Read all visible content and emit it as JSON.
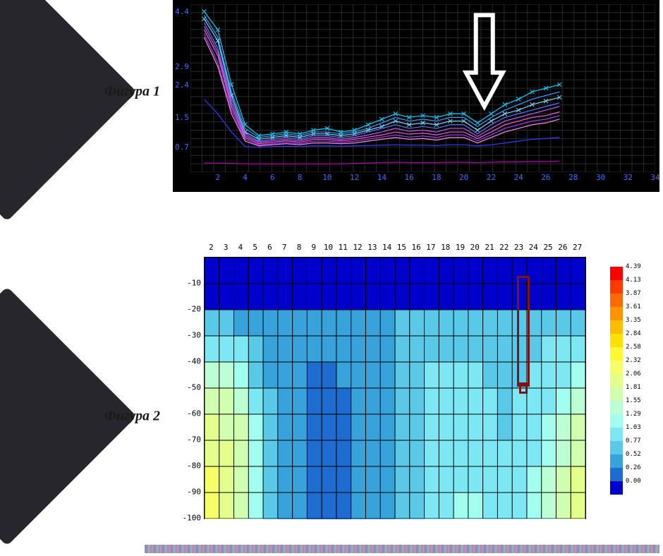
{
  "figure1": {
    "label": "Фигура 1",
    "type": "line",
    "background_color": "#000000",
    "grid_color": "#2a2a2a",
    "tick_color": "#3a6bff",
    "tick_fontsize": 11,
    "xlim": [
      0,
      34
    ],
    "ylim": [
      0,
      4.6
    ],
    "x_ticks": [
      2,
      4,
      6,
      8,
      10,
      12,
      14,
      16,
      18,
      20,
      22,
      24,
      26,
      28,
      30,
      32,
      34
    ],
    "y_ticks": [
      0.7,
      1.5,
      2.4,
      2.9,
      4.4
    ],
    "series": [
      {
        "color": "#00d0ff",
        "values": [
          4.4,
          3.9,
          2.4,
          1.3,
          1.0,
          1.05,
          1.1,
          1.05,
          1.15,
          1.2,
          1.1,
          1.15,
          1.3,
          1.45,
          1.6,
          1.5,
          1.55,
          1.5,
          1.6,
          1.6,
          1.35,
          1.6,
          1.85,
          2.0,
          2.2,
          2.3,
          2.4
        ]
      },
      {
        "color": "#3aa0ff",
        "values": [
          4.3,
          3.7,
          2.2,
          1.2,
          0.95,
          1.0,
          1.05,
          1.0,
          1.1,
          1.1,
          1.05,
          1.1,
          1.2,
          1.35,
          1.5,
          1.4,
          1.45,
          1.4,
          1.5,
          1.5,
          1.25,
          1.5,
          1.7,
          1.85,
          2.0,
          2.1,
          2.2
        ]
      },
      {
        "color": "#7ad4ff",
        "values": [
          4.2,
          3.6,
          2.1,
          1.1,
          0.9,
          0.95,
          1.0,
          0.95,
          1.05,
          1.05,
          1.0,
          1.05,
          1.15,
          1.25,
          1.4,
          1.3,
          1.35,
          1.3,
          1.4,
          1.4,
          1.15,
          1.4,
          1.6,
          1.7,
          1.85,
          1.95,
          2.05
        ]
      },
      {
        "color": "#5a7aff",
        "values": [
          4.1,
          3.4,
          2.0,
          1.05,
          0.85,
          0.9,
          0.95,
          0.9,
          1.0,
          1.0,
          0.95,
          1.0,
          1.1,
          1.2,
          1.3,
          1.2,
          1.25,
          1.2,
          1.3,
          1.3,
          1.05,
          1.3,
          1.5,
          1.6,
          1.7,
          1.8,
          1.9
        ]
      },
      {
        "color": "#c05aff",
        "values": [
          4.0,
          3.3,
          1.9,
          1.0,
          0.82,
          0.86,
          0.9,
          0.86,
          0.95,
          0.95,
          0.9,
          0.95,
          1.02,
          1.1,
          1.2,
          1.12,
          1.15,
          1.1,
          1.2,
          1.2,
          0.98,
          1.2,
          1.4,
          1.5,
          1.6,
          1.7,
          1.8
        ]
      },
      {
        "color": "#ff5ad4",
        "values": [
          3.9,
          3.2,
          1.8,
          0.95,
          0.78,
          0.82,
          0.86,
          0.82,
          0.9,
          0.9,
          0.86,
          0.9,
          0.96,
          1.02,
          1.1,
          1.04,
          1.07,
          1.02,
          1.1,
          1.1,
          0.92,
          1.1,
          1.3,
          1.4,
          1.5,
          1.55,
          1.65
        ]
      },
      {
        "color": "#9a40ff",
        "values": [
          3.8,
          3.0,
          1.7,
          0.9,
          0.75,
          0.78,
          0.82,
          0.78,
          0.85,
          0.85,
          0.82,
          0.85,
          0.9,
          0.96,
          1.02,
          0.96,
          0.99,
          0.95,
          1.02,
          1.02,
          0.86,
          1.02,
          1.2,
          1.3,
          1.4,
          1.45,
          1.55
        ]
      },
      {
        "color": "#ff8ae6",
        "values": [
          3.7,
          2.9,
          1.6,
          0.85,
          0.72,
          0.75,
          0.78,
          0.75,
          0.8,
          0.8,
          0.78,
          0.8,
          0.85,
          0.9,
          0.95,
          0.9,
          0.92,
          0.88,
          0.95,
          0.95,
          0.8,
          0.95,
          1.1,
          1.2,
          1.3,
          1.35,
          1.45
        ]
      },
      {
        "color": "#3737ff",
        "values": [
          2.0,
          1.6,
          1.1,
          0.7,
          0.68,
          0.7,
          0.71,
          0.7,
          0.72,
          0.72,
          0.71,
          0.72,
          0.73,
          0.74,
          0.75,
          0.74,
          0.74,
          0.73,
          0.75,
          0.75,
          0.72,
          0.75,
          0.8,
          0.85,
          0.9,
          0.92,
          0.95
        ]
      },
      {
        "color": "#b000b0",
        "values": [
          0.25,
          0.25,
          0.24,
          0.23,
          0.23,
          0.23,
          0.23,
          0.23,
          0.23,
          0.23,
          0.23,
          0.24,
          0.25,
          0.26,
          0.27,
          0.26,
          0.26,
          0.26,
          0.27,
          0.27,
          0.26,
          0.27,
          0.28,
          0.28,
          0.29,
          0.29,
          0.3
        ]
      }
    ],
    "arrow": {
      "stroke": "#ffffff",
      "stroke_width": 6,
      "x_value": 21.5,
      "y_from": 4.4,
      "y_to": 1.8,
      "head_width": 52,
      "head_height": 48
    }
  },
  "figure2": {
    "label": "Фигура 2",
    "type": "heatmap",
    "x_ticks": [
      2,
      3,
      4,
      5,
      6,
      7,
      8,
      9,
      10,
      11,
      12,
      13,
      14,
      15,
      16,
      17,
      18,
      19,
      20,
      21,
      22,
      23,
      24,
      25,
      26,
      27
    ],
    "y_ticks": [
      -10,
      -20,
      -30,
      -40,
      -50,
      -60,
      -70,
      -80,
      -90,
      -100
    ],
    "xlim": [
      1.5,
      27.5
    ],
    "ylim": [
      -100,
      0
    ],
    "grid_color": "#000000",
    "tick_fontsize": 11,
    "colormap": [
      {
        "v": 4.39,
        "c": "#ff0000"
      },
      {
        "v": 4.13,
        "c": "#ff3a00"
      },
      {
        "v": 3.87,
        "c": "#ff6a00"
      },
      {
        "v": 3.61,
        "c": "#ff9400"
      },
      {
        "v": 3.35,
        "c": "#ffbd00"
      },
      {
        "v": 2.84,
        "c": "#ffe100"
      },
      {
        "v": 2.58,
        "c": "#fff933"
      },
      {
        "v": 2.32,
        "c": "#f6ff66"
      },
      {
        "v": 2.06,
        "c": "#e3ff8c"
      },
      {
        "v": 1.81,
        "c": "#d0ffb0"
      },
      {
        "v": 1.55,
        "c": "#bdffd4"
      },
      {
        "v": 1.29,
        "c": "#a2ffef"
      },
      {
        "v": 1.03,
        "c": "#7de8f4"
      },
      {
        "v": 0.77,
        "c": "#5ac9e8"
      },
      {
        "v": 0.52,
        "c": "#38a2db"
      },
      {
        "v": 0.26,
        "c": "#1e6ccf"
      },
      {
        "v": 0.0,
        "c": "#0000cc"
      }
    ],
    "grid_values": [
      [
        0.0,
        0.0,
        0.0,
        0.0,
        0.0,
        0.0,
        0.0,
        0.0,
        0.0,
        0.0,
        0.0,
        0.0,
        0.0,
        0.0,
        0.0,
        0.0,
        0.0,
        0.0,
        0.0,
        0.0,
        0.0,
        0.0,
        0.0,
        0.0,
        0.0,
        0.0
      ],
      [
        0.1,
        0.1,
        0.1,
        0.1,
        0.1,
        0.1,
        0.1,
        0.1,
        0.1,
        0.1,
        0.1,
        0.1,
        0.1,
        0.1,
        0.1,
        0.1,
        0.1,
        0.1,
        0.1,
        0.1,
        0.1,
        0.1,
        0.1,
        0.1,
        0.1,
        0.1
      ],
      [
        0.77,
        0.77,
        0.7,
        0.6,
        0.6,
        0.6,
        0.6,
        0.6,
        0.6,
        0.65,
        0.7,
        0.7,
        0.72,
        0.77,
        0.77,
        0.8,
        0.8,
        0.8,
        0.8,
        0.77,
        0.77,
        0.77,
        0.8,
        0.8,
        0.8,
        0.82
      ],
      [
        1.2,
        1.2,
        1.1,
        0.8,
        0.65,
        0.6,
        0.55,
        0.55,
        0.55,
        0.58,
        0.65,
        0.7,
        0.72,
        0.9,
        0.95,
        1.0,
        1.0,
        1.0,
        1.0,
        0.95,
        0.9,
        0.95,
        1.0,
        1.03,
        1.03,
        1.1
      ],
      [
        1.6,
        1.55,
        1.4,
        1.0,
        0.7,
        0.55,
        0.52,
        0.5,
        0.5,
        0.52,
        0.55,
        0.6,
        0.7,
        0.9,
        1.0,
        1.03,
        1.05,
        1.05,
        1.05,
        1.0,
        0.95,
        1.0,
        1.05,
        1.1,
        1.15,
        1.29
      ],
      [
        1.81,
        1.81,
        1.6,
        1.2,
        0.77,
        0.55,
        0.52,
        0.5,
        0.5,
        0.5,
        0.52,
        0.55,
        0.65,
        0.85,
        1.0,
        1.05,
        1.1,
        1.1,
        1.1,
        1.03,
        0.98,
        1.03,
        1.1,
        1.15,
        1.29,
        1.55
      ],
      [
        2.06,
        2.0,
        1.81,
        1.29,
        0.8,
        0.55,
        0.52,
        0.5,
        0.5,
        0.5,
        0.52,
        0.55,
        0.6,
        0.8,
        1.0,
        1.05,
        1.1,
        1.15,
        1.15,
        1.05,
        1.0,
        1.05,
        1.15,
        1.29,
        1.55,
        1.81
      ],
      [
        2.2,
        2.1,
        1.9,
        1.35,
        0.82,
        0.56,
        0.52,
        0.5,
        0.5,
        0.5,
        0.52,
        0.55,
        0.6,
        0.78,
        1.0,
        1.08,
        1.15,
        1.2,
        1.2,
        1.1,
        1.03,
        1.1,
        1.2,
        1.4,
        1.7,
        1.95
      ],
      [
        2.32,
        2.2,
        1.95,
        1.4,
        0.83,
        0.57,
        0.52,
        0.5,
        0.5,
        0.5,
        0.52,
        0.55,
        0.6,
        0.77,
        1.0,
        1.1,
        1.2,
        1.25,
        1.25,
        1.15,
        1.05,
        1.15,
        1.29,
        1.55,
        1.81,
        2.06
      ],
      [
        2.32,
        2.25,
        2.0,
        1.45,
        0.84,
        0.57,
        0.52,
        0.5,
        0.5,
        0.5,
        0.52,
        0.55,
        0.6,
        0.77,
        1.0,
        1.1,
        1.25,
        1.29,
        1.29,
        1.2,
        1.1,
        1.2,
        1.35,
        1.6,
        1.9,
        2.1
      ]
    ],
    "marker": {
      "color": "#7a1418",
      "stroke_width": 3,
      "x": 21,
      "y_from": 0,
      "y_to": -44,
      "x_width": 1
    },
    "legend_fontsize": 9
  },
  "arrow_callout_bg": "#27262c",
  "label_fontsize": 20
}
